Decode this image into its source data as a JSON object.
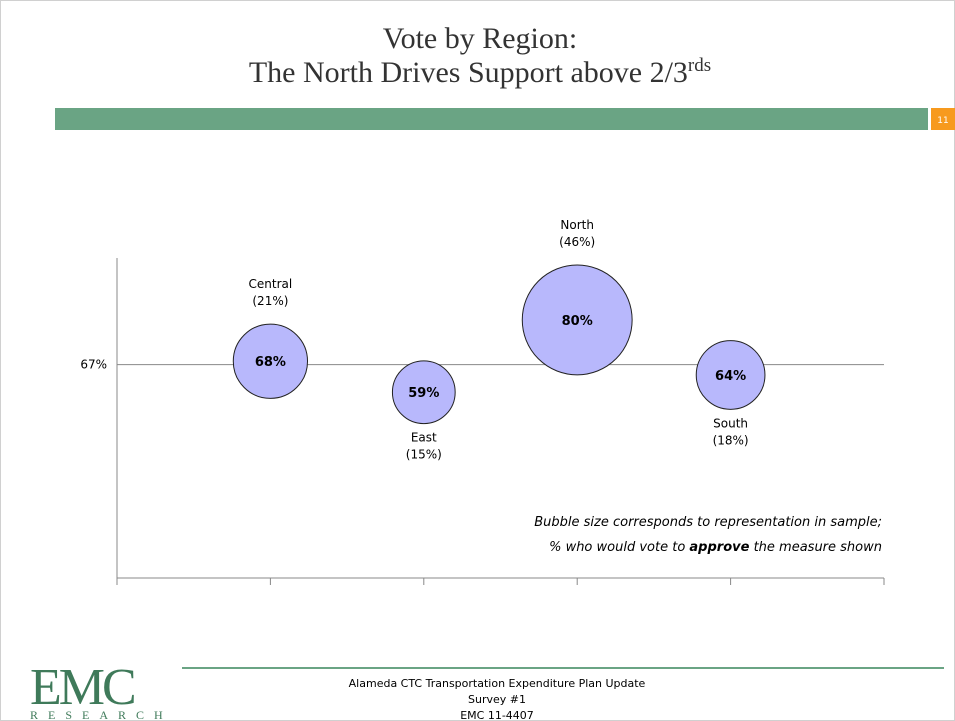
{
  "header": {
    "title_line1": "Vote by Region:",
    "title_line2": "The North Drives Support above 2/3",
    "title_superscript": "rds",
    "slide_number": "11"
  },
  "chart_data": {
    "type": "bubble",
    "categories": [
      "Central",
      "East",
      "North",
      "South"
    ],
    "values": [
      68,
      59,
      80,
      64
    ],
    "value_labels": [
      "68%",
      "59%",
      "80%",
      "64%"
    ],
    "sizes": [
      21,
      15,
      46,
      18
    ],
    "size_labels": [
      "(21%)",
      "(15%)",
      "(46%)",
      "(18%)"
    ],
    "color": "#b8b8fc",
    "ylim": [
      5,
      98
    ],
    "yticks": [
      {
        "value": 67,
        "label": "67%"
      }
    ],
    "annotation": {
      "line1": "Bubble size corresponds to representation in sample;",
      "line2_before": "% who would vote to ",
      "line2_bold": "approve",
      "line2_after": " the measure shown"
    }
  },
  "footer": {
    "logo": "EMC",
    "logo_sub": "RESEARCH",
    "line1": "Alameda CTC Transportation Expenditure Plan Update",
    "line2": "Survey #1",
    "line3": "EMC 11-4407"
  }
}
